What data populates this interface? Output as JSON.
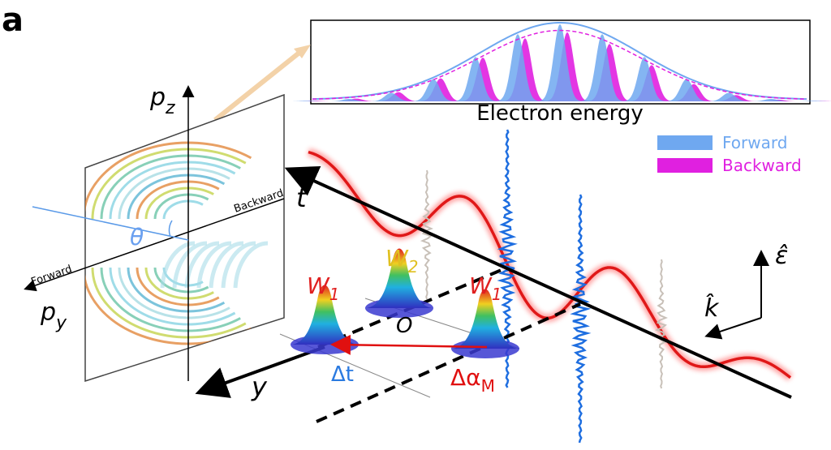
{
  "panel_label": "a",
  "inset": {
    "xlabel": "Electron energy",
    "legend": [
      {
        "name": "Forward",
        "color": "#6fa8f0"
      },
      {
        "name": "Backward",
        "color": "#e020e0"
      }
    ]
  },
  "detector": {
    "vertical_axis": {
      "text": "p",
      "sub": "z"
    },
    "horizontal_axis": {
      "text": "p",
      "sub": "y"
    },
    "angle": "θ",
    "forward": "Forward",
    "backward": "Backward"
  },
  "scene": {
    "time_axis": "t",
    "y_axis": "y",
    "origin": "O",
    "delta_t": "Δt",
    "delta_alpha": {
      "text": "Δα",
      "sub": "M"
    },
    "polarization": "ε̂",
    "wavevector": "k̂",
    "wavepackets": [
      {
        "text": "W",
        "sub": "1"
      },
      {
        "text": "W",
        "sub": "2"
      },
      {
        "text": "W",
        "sub": "1"
      }
    ]
  }
}
